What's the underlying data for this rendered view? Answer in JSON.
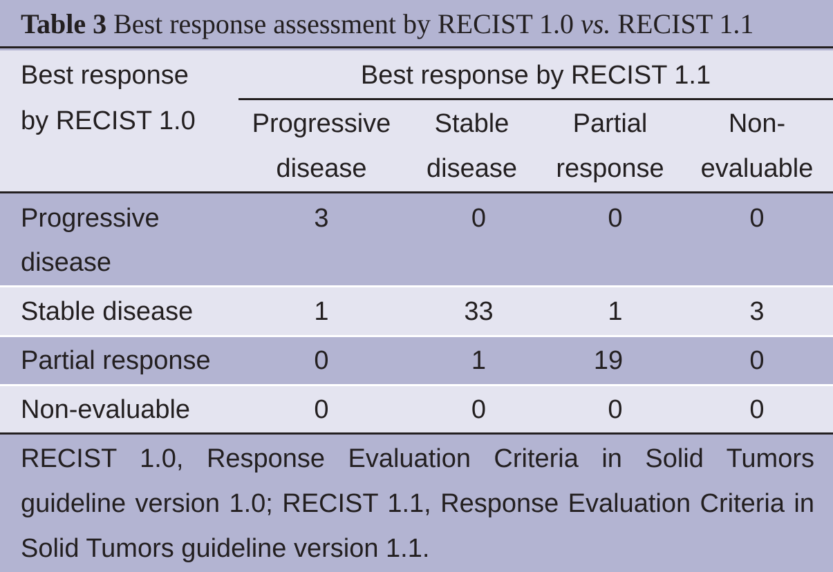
{
  "table": {
    "label": "Table 3",
    "title_before": "Best response assessment by RECIST 1.0",
    "title_italic": "vs.",
    "title_after": "RECIST 1.1",
    "row_header_line1": "Best response",
    "row_header_line2": "by RECIST 1.0",
    "col_group_header": "Best response by RECIST 1.1",
    "columns": [
      {
        "line1": "Progressive",
        "line2": "disease"
      },
      {
        "line1": "Stable",
        "line2": "disease"
      },
      {
        "line1": "Partial",
        "line2": "response"
      },
      {
        "line1": "Non-",
        "line2": "evaluable"
      }
    ],
    "rows": [
      {
        "label_line1": "Progressive",
        "label_line2": "disease",
        "values": [
          "3",
          "0",
          "0",
          "0"
        ]
      },
      {
        "label_line1": "Stable disease",
        "values": [
          "1",
          "33",
          "1",
          "3"
        ]
      },
      {
        "label_line1": "Partial response",
        "values": [
          "0",
          "1",
          "19",
          "0"
        ]
      },
      {
        "label_line1": "Non-evaluable",
        "values": [
          "0",
          "0",
          "0",
          "0"
        ]
      }
    ],
    "footnote": "RECIST 1.0, Response Evaluation Criteria in Solid Tumors guideline version 1.0; RECIST 1.1, Response Evaluation Criteria in Solid Tumors guideline version 1.1."
  },
  "colors": {
    "dark_band": "#b3b4d2",
    "light_band": "#e4e4f0",
    "rule": "#231f20",
    "text": "#231f20"
  }
}
